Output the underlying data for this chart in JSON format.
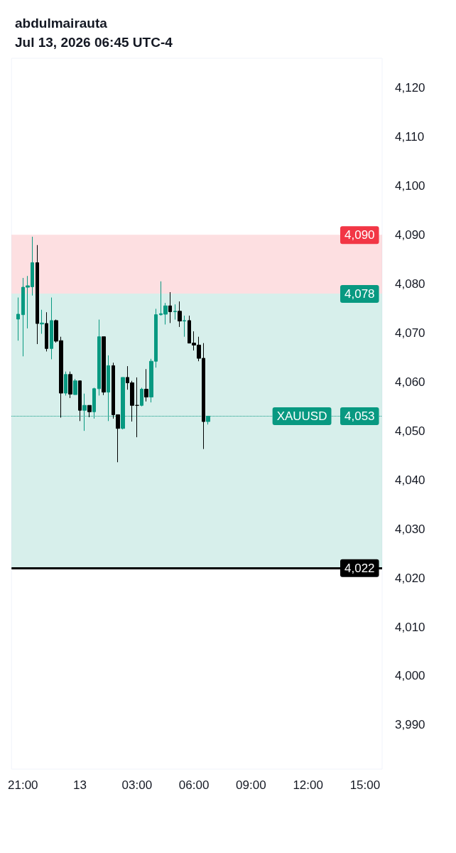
{
  "chart_data": {
    "type": "candlestick",
    "title": "abdulmairauta",
    "subtitle": "Jul 13, 2026 06:45 UTC-4",
    "x": [
      "2026-07-12T20:45",
      "2026-07-12T21:00",
      "2026-07-12T21:15",
      "2026-07-12T21:30",
      "2026-07-12T21:45",
      "2026-07-12T22:00",
      "2026-07-12T22:15",
      "2026-07-12T22:30",
      "2026-07-12T22:45",
      "2026-07-12T23:00",
      "2026-07-12T23:15",
      "2026-07-12T23:30",
      "2026-07-12T23:45",
      "2026-07-13T00:00",
      "2026-07-13T00:15",
      "2026-07-13T00:30",
      "2026-07-13T00:45",
      "2026-07-13T01:00",
      "2026-07-13T01:15",
      "2026-07-13T01:30",
      "2026-07-13T01:45",
      "2026-07-13T02:00",
      "2026-07-13T02:15",
      "2026-07-13T02:30",
      "2026-07-13T02:45",
      "2026-07-13T03:00",
      "2026-07-13T03:15",
      "2026-07-13T03:30",
      "2026-07-13T03:45",
      "2026-07-13T04:00",
      "2026-07-13T04:15",
      "2026-07-13T04:30",
      "2026-07-13T04:45",
      "2026-07-13T05:00",
      "2026-07-13T05:15",
      "2026-07-13T05:30",
      "2026-07-13T05:45",
      "2026-07-13T06:00",
      "2026-07-13T06:15",
      "2026-07-13T06:30",
      "2026-07-13T06:45"
    ],
    "series": [
      {
        "name": "XAUUSD",
        "color": "#089981",
        "colors": [
          "#089981",
          "#089981",
          "#089981",
          "#089981",
          "#000000",
          "#089981",
          "#000000",
          "#089981",
          "#000000",
          "#000000",
          "#089981",
          "#000000",
          "#089981",
          "#000000",
          "#089981",
          "#000000",
          "#089981",
          "#089981",
          "#000000",
          "#089981",
          "#000000",
          "#000000",
          "#089981",
          "#000000",
          "#000000",
          "#000000",
          "#089981",
          "#000000",
          "#089981",
          "#089981",
          "#089981",
          "#089981",
          "#000000",
          "#089981",
          "#000000",
          "#089981",
          "#000000",
          "#000000",
          "#000000",
          "#000000",
          "#089981"
        ],
        "ohlc": [
          [
            4072.8,
            4077.2,
            4068.4,
            4073.8
          ],
          [
            4073.7,
            4081.2,
            4065.2,
            4079.3
          ],
          [
            4079.3,
            4081.6,
            4070.9,
            4079.6
          ],
          [
            4079.4,
            4089.6,
            4077.6,
            4084.3
          ],
          [
            4084.3,
            4087.9,
            4067.7,
            4071.9
          ],
          [
            4071.8,
            4074.7,
            4069.8,
            4072.0
          ],
          [
            4071.9,
            4074.2,
            4066.2,
            4066.8
          ],
          [
            4066.8,
            4077.2,
            4064.6,
            4072.5
          ],
          [
            4072.5,
            4072.7,
            4068.0,
            4068.3
          ],
          [
            4068.4,
            4069.2,
            4052.7,
            4057.7
          ],
          [
            4057.7,
            4062.1,
            4057.2,
            4061.5
          ],
          [
            4061.5,
            4062.1,
            4056.7,
            4057.5
          ],
          [
            4057.4,
            4060.6,
            4057.4,
            4060.2
          ],
          [
            4060.2,
            4060.2,
            4052.0,
            4054.2
          ],
          [
            4054.2,
            4057.6,
            4050.0,
            4055.2
          ],
          [
            4055.2,
            4055.2,
            4052.8,
            4053.9
          ],
          [
            4053.9,
            4058.8,
            4052.5,
            4058.6
          ],
          [
            4058.6,
            4072.7,
            4057.2,
            4069.2
          ],
          [
            4069.2,
            4069.2,
            4057.3,
            4057.9
          ],
          [
            4057.9,
            4065.4,
            4052.0,
            4063.3
          ],
          [
            4063.3,
            4063.9,
            4052.5,
            4053.3
          ],
          [
            4053.3,
            4053.3,
            4043.6,
            4050.5
          ],
          [
            4050.5,
            4060.9,
            4050.3,
            4060.9
          ],
          [
            4060.9,
            4063.2,
            4058.4,
            4059.8
          ],
          [
            4059.8,
            4060.2,
            4051.9,
            4055.2
          ],
          [
            4055.2,
            4060.9,
            4048.7,
            4055.2
          ],
          [
            4055.2,
            4058.8,
            4055.0,
            4058.5
          ],
          [
            4058.5,
            4062.6,
            4056.0,
            4056.9
          ],
          [
            4056.9,
            4064.7,
            4055.8,
            4064.2
          ],
          [
            4064.2,
            4074.9,
            4062.9,
            4073.7
          ],
          [
            4073.7,
            4080.5,
            4073.5,
            4073.9
          ],
          [
            4073.8,
            4076.1,
            4071.7,
            4075.5
          ],
          [
            4075.5,
            4078.3,
            4072.0,
            4074.3
          ],
          [
            4074.3,
            4075.8,
            4072.7,
            4074.4
          ],
          [
            4074.4,
            4076.4,
            4071.2,
            4072.4
          ],
          [
            4072.4,
            4073.5,
            4069.2,
            4072.5
          ],
          [
            4072.5,
            4073.5,
            4067.9,
            4067.9
          ],
          [
            4067.9,
            4070.3,
            4066.4,
            4067.5
          ],
          [
            4067.5,
            4069.2,
            4064.2,
            4064.8
          ],
          [
            4064.8,
            4067.9,
            4046.3,
            4051.9
          ],
          [
            4051.9,
            4053.0,
            4051.3,
            4053.0
          ]
        ]
      }
    ],
    "xlim": [
      "2026-07-12T20:24",
      "2026-07-13T15:54"
    ],
    "xticks": [
      {
        "value": "2026-07-12T21:00",
        "label": "21:00"
      },
      {
        "value": "2026-07-13T00:00",
        "label": "13"
      },
      {
        "value": "2026-07-13T03:00",
        "label": "03:00"
      },
      {
        "value": "2026-07-13T06:00",
        "label": "06:00"
      },
      {
        "value": "2026-07-13T09:00",
        "label": "09:00"
      },
      {
        "value": "2026-07-13T12:00",
        "label": "12:00"
      },
      {
        "value": "2026-07-13T15:00",
        "label": "15:00"
      }
    ],
    "ylim": [
      3981,
      4126
    ],
    "yticks": [
      {
        "value": 3990,
        "label": "3,990"
      },
      {
        "value": 4000,
        "label": "4,000"
      },
      {
        "value": 4010,
        "label": "4,010"
      },
      {
        "value": 4020,
        "label": "4,020"
      },
      {
        "value": 4030,
        "label": "4,030"
      },
      {
        "value": 4040,
        "label": "4,040"
      },
      {
        "value": 4050,
        "label": "4,050"
      },
      {
        "value": 4060,
        "label": "4,060"
      },
      {
        "value": 4070,
        "label": "4,070"
      },
      {
        "value": 4080,
        "label": "4,080"
      },
      {
        "value": 4090,
        "label": "4,090"
      },
      {
        "value": 4100,
        "label": "4,100"
      },
      {
        "value": 4110,
        "label": "4,110"
      },
      {
        "value": 4120,
        "label": "4,120"
      }
    ],
    "ref_lines": [
      {
        "axis": "y",
        "value": 4053,
        "label": "4,053",
        "color": "#089981",
        "line_style": "dotted"
      },
      {
        "axis": "y",
        "value": 4022,
        "label": "4,022",
        "color": "#000000",
        "line_style": "solid"
      }
    ],
    "bands": [
      {
        "axis": "y",
        "from": 4078,
        "to": 4090,
        "label": "4,090",
        "color": "#f23645"
      },
      {
        "axis": "y",
        "from": 4022,
        "to": 4078,
        "label": "4,078",
        "color": "#089981"
      }
    ]
  }
}
